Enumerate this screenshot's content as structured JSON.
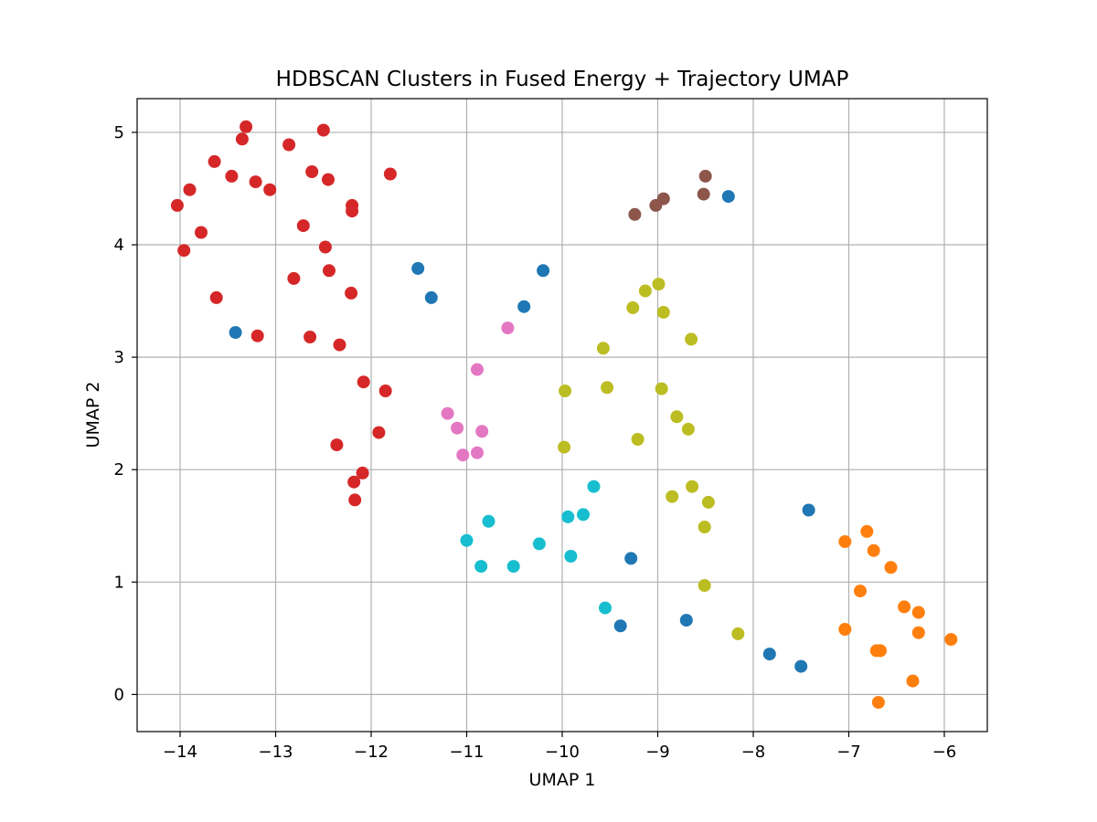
{
  "chart_data": {
    "type": "scatter",
    "title": "HDBSCAN Clusters in Fused Energy + Trajectory UMAP",
    "xlabel": "UMAP 1",
    "ylabel": "UMAP 2",
    "xlim": [
      -14.45,
      -5.55
    ],
    "ylim": [
      -0.33,
      5.3
    ],
    "xticks": [
      -14,
      -13,
      -12,
      -11,
      -10,
      -9,
      -8,
      -7,
      -6
    ],
    "xtick_labels": [
      "−14",
      "−13",
      "−12",
      "−11",
      "−10",
      "−9",
      "−8",
      "−7",
      "−6"
    ],
    "yticks": [
      0,
      1,
      2,
      3,
      4,
      5
    ],
    "ytick_labels": [
      "0",
      "1",
      "2",
      "3",
      "4",
      "5"
    ],
    "grid": true,
    "series": [
      {
        "color": "#d62728",
        "points": [
          [
            -14.03,
            4.35
          ],
          [
            -13.9,
            4.49
          ],
          [
            -13.96,
            3.95
          ],
          [
            -13.78,
            4.11
          ],
          [
            -13.64,
            4.74
          ],
          [
            -13.62,
            3.53
          ],
          [
            -13.46,
            4.61
          ],
          [
            -13.35,
            4.94
          ],
          [
            -13.31,
            5.05
          ],
          [
            -13.21,
            4.56
          ],
          [
            -13.19,
            3.19
          ],
          [
            -13.06,
            4.49
          ],
          [
            -12.86,
            4.89
          ],
          [
            -12.81,
            3.7
          ],
          [
            -12.71,
            4.17
          ],
          [
            -12.62,
            4.65
          ],
          [
            -12.64,
            3.18
          ],
          [
            -12.5,
            5.02
          ],
          [
            -12.48,
            3.98
          ],
          [
            -12.45,
            4.58
          ],
          [
            -12.44,
            3.77
          ],
          [
            -12.36,
            2.22
          ],
          [
            -12.33,
            3.11
          ],
          [
            -12.21,
            3.57
          ],
          [
            -12.2,
            4.35
          ],
          [
            -12.2,
            4.3
          ],
          [
            -12.18,
            1.89
          ],
          [
            -12.17,
            1.73
          ],
          [
            -12.09,
            1.97
          ],
          [
            -12.08,
            2.78
          ],
          [
            -11.92,
            2.33
          ],
          [
            -11.85,
            2.7
          ],
          [
            -11.8,
            4.63
          ]
        ]
      },
      {
        "color": "#1f77b4",
        "points": [
          [
            -13.42,
            3.22
          ],
          [
            -11.51,
            3.79
          ],
          [
            -11.37,
            3.53
          ],
          [
            -10.4,
            3.45
          ],
          [
            -10.2,
            3.77
          ],
          [
            -9.28,
            1.21
          ],
          [
            -9.39,
            0.61
          ],
          [
            -8.7,
            0.66
          ],
          [
            -8.26,
            4.43
          ],
          [
            -7.83,
            0.36
          ],
          [
            -7.5,
            0.25
          ],
          [
            -7.42,
            1.64
          ]
        ]
      },
      {
        "color": "#e377c2",
        "points": [
          [
            -11.2,
            2.5
          ],
          [
            -11.1,
            2.37
          ],
          [
            -11.04,
            2.13
          ],
          [
            -10.89,
            2.89
          ],
          [
            -10.89,
            2.15
          ],
          [
            -10.84,
            2.34
          ],
          [
            -10.57,
            3.26
          ]
        ]
      },
      {
        "color": "#17becf",
        "points": [
          [
            -11.0,
            1.37
          ],
          [
            -10.85,
            1.14
          ],
          [
            -10.77,
            1.54
          ],
          [
            -10.51,
            1.14
          ],
          [
            -10.24,
            1.34
          ],
          [
            -9.94,
            1.58
          ],
          [
            -9.91,
            1.23
          ],
          [
            -9.78,
            1.6
          ],
          [
            -9.67,
            1.85
          ],
          [
            -9.55,
            0.77
          ]
        ]
      },
      {
        "color": "#bcbd22",
        "points": [
          [
            -9.97,
            2.7
          ],
          [
            -9.98,
            2.2
          ],
          [
            -9.57,
            3.08
          ],
          [
            -9.53,
            2.73
          ],
          [
            -9.26,
            3.44
          ],
          [
            -9.21,
            2.27
          ],
          [
            -9.13,
            3.59
          ],
          [
            -8.99,
            3.65
          ],
          [
            -8.96,
            2.72
          ],
          [
            -8.94,
            3.4
          ],
          [
            -8.85,
            1.76
          ],
          [
            -8.8,
            2.47
          ],
          [
            -8.68,
            2.36
          ],
          [
            -8.65,
            3.16
          ],
          [
            -8.64,
            1.85
          ],
          [
            -8.51,
            1.49
          ],
          [
            -8.51,
            0.97
          ],
          [
            -8.47,
            1.71
          ],
          [
            -8.16,
            0.54
          ]
        ]
      },
      {
        "color": "#8c564b",
        "points": [
          [
            -9.24,
            4.27
          ],
          [
            -9.02,
            4.35
          ],
          [
            -8.94,
            4.41
          ],
          [
            -8.52,
            4.45
          ],
          [
            -8.5,
            4.61
          ]
        ]
      },
      {
        "color": "#ff7f0e",
        "points": [
          [
            -7.04,
            1.36
          ],
          [
            -7.04,
            0.58
          ],
          [
            -6.88,
            0.92
          ],
          [
            -6.81,
            1.45
          ],
          [
            -6.74,
            1.28
          ],
          [
            -6.71,
            0.39
          ],
          [
            -6.67,
            0.39
          ],
          [
            -6.69,
            -0.07
          ],
          [
            -6.56,
            1.13
          ],
          [
            -6.42,
            0.78
          ],
          [
            -6.33,
            0.12
          ],
          [
            -6.27,
            0.73
          ],
          [
            -6.27,
            0.55
          ],
          [
            -5.93,
            0.49
          ]
        ]
      }
    ]
  }
}
